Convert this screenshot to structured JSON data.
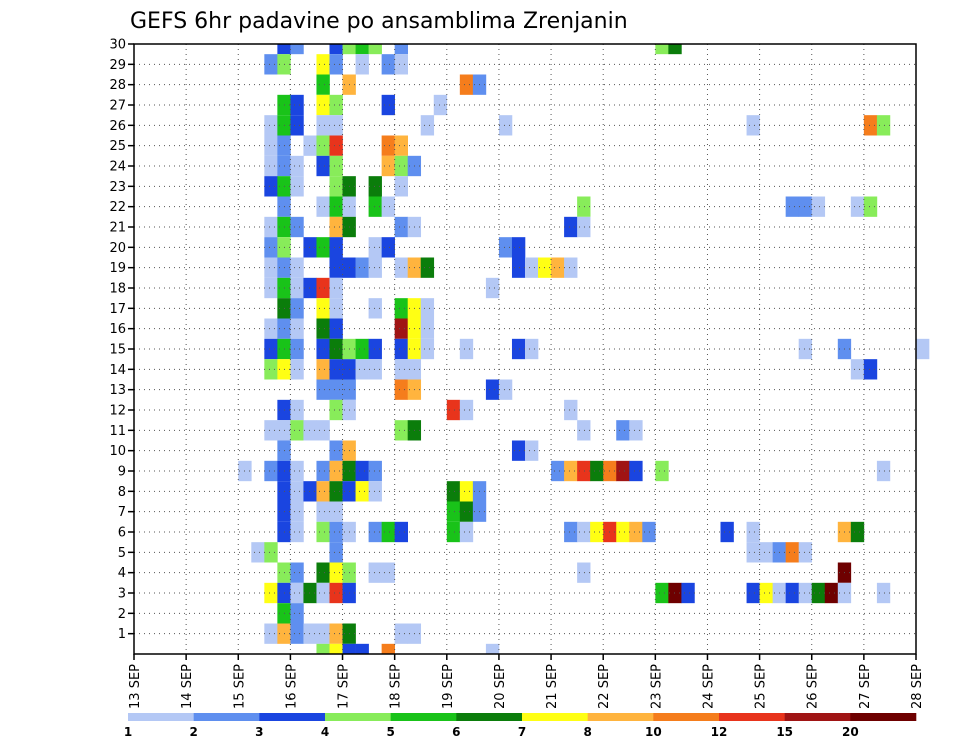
{
  "chart_data": {
    "type": "heatmap",
    "title": "GEFS 6hr padavine po ansamblima Zrenjanin",
    "x_tick_labels": [
      "13 SEP",
      "14 SEP",
      "15 SEP",
      "16 SEP",
      "17 SEP",
      "18 SEP",
      "19 SEP",
      "20 SEP",
      "21 SEP",
      "22 SEP",
      "23 SEP",
      "24 SEP",
      "25 SEP",
      "26 SEP",
      "27 SEP",
      "28 SEP"
    ],
    "y_tick_labels": [
      "1",
      "2",
      "3",
      "4",
      "5",
      "6",
      "7",
      "8",
      "9",
      "10",
      "11",
      "12",
      "13",
      "14",
      "15",
      "16",
      "17",
      "18",
      "19",
      "20",
      "21",
      "22",
      "23",
      "24",
      "25",
      "26",
      "27",
      "28",
      "29",
      "30"
    ],
    "x_unit": "6-hour step since 13 SEP 00Z",
    "xlim": [
      0,
      60
    ],
    "ylim": [
      0,
      30
    ],
    "grid": true,
    "colorbar": {
      "labels": [
        "1",
        "2",
        "3",
        "4",
        "5",
        "6",
        "7",
        "8",
        "10",
        "12",
        "15",
        "20"
      ],
      "colors": [
        "#b4c8f5",
        "#5f8fef",
        "#1a45e0",
        "#88ec5a",
        "#19c319",
        "#0b7d0b",
        "#ffff14",
        "#ffb43e",
        "#f57d1c",
        "#e8341c",
        "#a01414",
        "#6e0000"
      ]
    },
    "cells": [
      {
        "member": 30,
        "col": [
          [
            11,
            2
          ],
          [
            12,
            1
          ],
          [
            15,
            2
          ],
          [
            16,
            3
          ],
          [
            17,
            4
          ],
          [
            18,
            3
          ],
          [
            20,
            1
          ],
          [
            40,
            3
          ],
          [
            41,
            5
          ]
        ]
      },
      {
        "member": 29,
        "col": [
          [
            10,
            1
          ],
          [
            11,
            3
          ],
          [
            14,
            6
          ],
          [
            15,
            1
          ],
          [
            17,
            0
          ],
          [
            19,
            1
          ],
          [
            20,
            0
          ]
        ]
      },
      {
        "member": 28,
        "col": [
          [
            14,
            4
          ],
          [
            16,
            7
          ],
          [
            25,
            8
          ],
          [
            26,
            1
          ]
        ]
      },
      {
        "member": 27,
        "col": [
          [
            11,
            4
          ],
          [
            12,
            2
          ],
          [
            14,
            6
          ],
          [
            15,
            3
          ],
          [
            19,
            2
          ],
          [
            23,
            0
          ]
        ]
      },
      {
        "member": 26,
        "col": [
          [
            10,
            0
          ],
          [
            11,
            4
          ],
          [
            12,
            2
          ],
          [
            14,
            0
          ],
          [
            15,
            0
          ],
          [
            22,
            0
          ],
          [
            28,
            0
          ],
          [
            47,
            0
          ],
          [
            56,
            8
          ],
          [
            57,
            3
          ]
        ]
      },
      {
        "member": 25,
        "col": [
          [
            10,
            0
          ],
          [
            11,
            1
          ],
          [
            13,
            0
          ],
          [
            14,
            3
          ],
          [
            15,
            9
          ],
          [
            19,
            8
          ],
          [
            20,
            7
          ]
        ]
      },
      {
        "member": 24,
        "col": [
          [
            10,
            0
          ],
          [
            11,
            1
          ],
          [
            12,
            0
          ],
          [
            14,
            2
          ],
          [
            15,
            3
          ],
          [
            19,
            7
          ],
          [
            20,
            3
          ],
          [
            21,
            1
          ]
        ]
      },
      {
        "member": 23,
        "col": [
          [
            10,
            2
          ],
          [
            11,
            4
          ],
          [
            12,
            0
          ],
          [
            15,
            3
          ],
          [
            16,
            5
          ],
          [
            18,
            5
          ],
          [
            20,
            0
          ]
        ]
      },
      {
        "member": 22,
        "col": [
          [
            11,
            1
          ],
          [
            14,
            0
          ],
          [
            15,
            4
          ],
          [
            16,
            0
          ],
          [
            18,
            4
          ],
          [
            19,
            0
          ],
          [
            34,
            3
          ],
          [
            50,
            1
          ],
          [
            51,
            1
          ],
          [
            52,
            0
          ],
          [
            55,
            0
          ],
          [
            56,
            3
          ]
        ]
      },
      {
        "member": 21,
        "col": [
          [
            10,
            0
          ],
          [
            11,
            4
          ],
          [
            12,
            1
          ],
          [
            15,
            7
          ],
          [
            16,
            5
          ],
          [
            20,
            1
          ],
          [
            21,
            0
          ],
          [
            33,
            2
          ],
          [
            34,
            0
          ]
        ]
      },
      {
        "member": 20,
        "col": [
          [
            10,
            1
          ],
          [
            11,
            3
          ],
          [
            13,
            2
          ],
          [
            14,
            4
          ],
          [
            15,
            2
          ],
          [
            18,
            0
          ],
          [
            19,
            2
          ],
          [
            28,
            1
          ],
          [
            29,
            2
          ]
        ]
      },
      {
        "member": 19,
        "col": [
          [
            10,
            0
          ],
          [
            11,
            1
          ],
          [
            12,
            0
          ],
          [
            15,
            2
          ],
          [
            16,
            2
          ],
          [
            17,
            1
          ],
          [
            18,
            0
          ],
          [
            20,
            0
          ],
          [
            21,
            7
          ],
          [
            22,
            5
          ],
          [
            29,
            2
          ],
          [
            30,
            0
          ],
          [
            31,
            6
          ],
          [
            32,
            7
          ],
          [
            33,
            0
          ]
        ]
      },
      {
        "member": 18,
        "col": [
          [
            10,
            0
          ],
          [
            11,
            4
          ],
          [
            12,
            0
          ],
          [
            13,
            2
          ],
          [
            14,
            9
          ],
          [
            15,
            0
          ],
          [
            27,
            0
          ]
        ]
      },
      {
        "member": 17,
        "col": [
          [
            11,
            5
          ],
          [
            12,
            1
          ],
          [
            14,
            6
          ],
          [
            15,
            0
          ],
          [
            18,
            0
          ],
          [
            20,
            4
          ],
          [
            21,
            6
          ],
          [
            22,
            0
          ]
        ]
      },
      {
        "member": 16,
        "col": [
          [
            10,
            0
          ],
          [
            11,
            1
          ],
          [
            12,
            0
          ],
          [
            14,
            5
          ],
          [
            15,
            2
          ],
          [
            20,
            10
          ],
          [
            21,
            6
          ],
          [
            22,
            0
          ]
        ]
      },
      {
        "member": 15,
        "col": [
          [
            10,
            2
          ],
          [
            11,
            4
          ],
          [
            12,
            1
          ],
          [
            14,
            2
          ],
          [
            15,
            5
          ],
          [
            16,
            3
          ],
          [
            17,
            4
          ],
          [
            18,
            2
          ],
          [
            20,
            2
          ],
          [
            21,
            6
          ],
          [
            22,
            0
          ],
          [
            25,
            0
          ],
          [
            29,
            2
          ],
          [
            30,
            0
          ],
          [
            51,
            0
          ],
          [
            54,
            1
          ],
          [
            60,
            0
          ]
        ]
      },
      {
        "member": 14,
        "col": [
          [
            10,
            3
          ],
          [
            11,
            6
          ],
          [
            12,
            0
          ],
          [
            14,
            7
          ],
          [
            15,
            2
          ],
          [
            16,
            2
          ],
          [
            17,
            0
          ],
          [
            18,
            0
          ],
          [
            20,
            0
          ],
          [
            21,
            0
          ],
          [
            55,
            0
          ],
          [
            56,
            2
          ]
        ]
      },
      {
        "member": 13,
        "col": [
          [
            14,
            1
          ],
          [
            15,
            1
          ],
          [
            16,
            1
          ],
          [
            20,
            8
          ],
          [
            21,
            7
          ],
          [
            27,
            2
          ],
          [
            28,
            0
          ]
        ]
      },
      {
        "member": 12,
        "col": [
          [
            11,
            2
          ],
          [
            12,
            0
          ],
          [
            15,
            3
          ],
          [
            16,
            0
          ],
          [
            24,
            9
          ],
          [
            25,
            0
          ],
          [
            33,
            0
          ]
        ]
      },
      {
        "member": 11,
        "col": [
          [
            10,
            0
          ],
          [
            11,
            0
          ],
          [
            12,
            3
          ],
          [
            13,
            0
          ],
          [
            14,
            0
          ],
          [
            20,
            3
          ],
          [
            21,
            5
          ],
          [
            34,
            0
          ],
          [
            37,
            1
          ],
          [
            38,
            0
          ]
        ]
      },
      {
        "member": 10,
        "col": [
          [
            11,
            1
          ],
          [
            15,
            1
          ],
          [
            16,
            7
          ],
          [
            29,
            2
          ],
          [
            30,
            0
          ]
        ]
      },
      {
        "member": 9,
        "col": [
          [
            8,
            0
          ],
          [
            10,
            1
          ],
          [
            11,
            2
          ],
          [
            12,
            0
          ],
          [
            14,
            1
          ],
          [
            15,
            7
          ],
          [
            16,
            5
          ],
          [
            17,
            2
          ],
          [
            18,
            1
          ],
          [
            32,
            1
          ],
          [
            33,
            7
          ],
          [
            34,
            9
          ],
          [
            35,
            5
          ],
          [
            36,
            8
          ],
          [
            37,
            10
          ],
          [
            38,
            2
          ],
          [
            40,
            3
          ],
          [
            57,
            0
          ]
        ]
      },
      {
        "member": 8,
        "col": [
          [
            11,
            2
          ],
          [
            12,
            0
          ],
          [
            13,
            2
          ],
          [
            14,
            7
          ],
          [
            15,
            5
          ],
          [
            16,
            2
          ],
          [
            17,
            6
          ],
          [
            18,
            0
          ],
          [
            24,
            5
          ],
          [
            25,
            6
          ],
          [
            26,
            1
          ]
        ]
      },
      {
        "member": 7,
        "col": [
          [
            11,
            2
          ],
          [
            12,
            0
          ],
          [
            14,
            0
          ],
          [
            15,
            0
          ],
          [
            24,
            4
          ],
          [
            25,
            5
          ],
          [
            26,
            1
          ]
        ]
      },
      {
        "member": 6,
        "col": [
          [
            11,
            2
          ],
          [
            12,
            0
          ],
          [
            14,
            3
          ],
          [
            15,
            1
          ],
          [
            16,
            0
          ],
          [
            18,
            1
          ],
          [
            19,
            4
          ],
          [
            20,
            2
          ],
          [
            24,
            4
          ],
          [
            25,
            0
          ],
          [
            33,
            1
          ],
          [
            34,
            0
          ],
          [
            35,
            6
          ],
          [
            36,
            9
          ],
          [
            37,
            6
          ],
          [
            38,
            7
          ],
          [
            39,
            1
          ],
          [
            45,
            2
          ],
          [
            47,
            0
          ],
          [
            54,
            7
          ],
          [
            55,
            5
          ]
        ]
      },
      {
        "member": 5,
        "col": [
          [
            9,
            0
          ],
          [
            10,
            3
          ],
          [
            15,
            1
          ],
          [
            47,
            0
          ],
          [
            48,
            0
          ],
          [
            49,
            1
          ],
          [
            50,
            8
          ],
          [
            51,
            0
          ]
        ]
      },
      {
        "member": 4,
        "col": [
          [
            11,
            3
          ],
          [
            12,
            1
          ],
          [
            14,
            5
          ],
          [
            15,
            6
          ],
          [
            16,
            3
          ],
          [
            18,
            0
          ],
          [
            19,
            0
          ],
          [
            34,
            0
          ],
          [
            54,
            11
          ]
        ]
      },
      {
        "member": 3,
        "col": [
          [
            10,
            6
          ],
          [
            11,
            2
          ],
          [
            12,
            0
          ],
          [
            13,
            5
          ],
          [
            14,
            0
          ],
          [
            15,
            9
          ],
          [
            16,
            2
          ],
          [
            40,
            4
          ],
          [
            41,
            11
          ],
          [
            42,
            2
          ],
          [
            47,
            2
          ],
          [
            48,
            6
          ],
          [
            49,
            0
          ],
          [
            50,
            2
          ],
          [
            51,
            0
          ],
          [
            52,
            5
          ],
          [
            53,
            11
          ],
          [
            54,
            0
          ],
          [
            57,
            0
          ]
        ]
      },
      {
        "member": 2,
        "col": [
          [
            11,
            4
          ],
          [
            12,
            1
          ]
        ]
      },
      {
        "member": 1,
        "col": [
          [
            10,
            0
          ],
          [
            11,
            7
          ],
          [
            12,
            1
          ],
          [
            13,
            0
          ],
          [
            14,
            0
          ],
          [
            15,
            7
          ],
          [
            16,
            5
          ],
          [
            20,
            0
          ],
          [
            21,
            0
          ]
        ]
      },
      {
        "member": 0,
        "col": [
          [
            14,
            3
          ],
          [
            15,
            6
          ],
          [
            16,
            2
          ],
          [
            17,
            2
          ],
          [
            19,
            8
          ],
          [
            27,
            0
          ]
        ]
      }
    ]
  }
}
